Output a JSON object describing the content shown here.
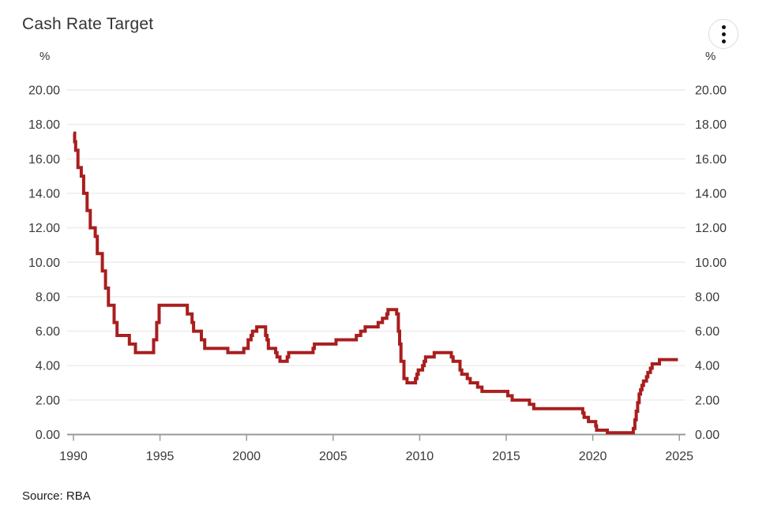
{
  "header": {
    "title": "Cash Rate Target",
    "menu_icon": "kebab-menu-icon"
  },
  "axes": {
    "left_unit": "%",
    "right_unit": "%"
  },
  "footer": {
    "source": "Source: RBA"
  },
  "chart_data": {
    "type": "line",
    "subtype": "step",
    "title": "Cash Rate Target",
    "xlabel": "",
    "ylabel": "%",
    "ylim": [
      0,
      20
    ],
    "ytick_step": 2,
    "ytick_format_decimals": 2,
    "xlim": [
      1990,
      2025
    ],
    "xticks": [
      1990,
      1995,
      2000,
      2005,
      2010,
      2015,
      2020,
      2025
    ],
    "grid": true,
    "legend": "none",
    "line_color": "#a91e1e",
    "grid_color": "#ececec",
    "axis_color": "#999999",
    "label_color": "#3a3a3a",
    "source": "Source: RBA",
    "series": [
      {
        "name": "Cash Rate Target",
        "points": [
          [
            1990.0,
            17.5
          ],
          [
            1990.07,
            17.0
          ],
          [
            1990.13,
            16.5
          ],
          [
            1990.26,
            15.5
          ],
          [
            1990.45,
            15.0
          ],
          [
            1990.59,
            14.0
          ],
          [
            1990.79,
            13.0
          ],
          [
            1990.97,
            12.0
          ],
          [
            1991.26,
            11.5
          ],
          [
            1991.38,
            10.5
          ],
          [
            1991.67,
            9.5
          ],
          [
            1991.85,
            8.5
          ],
          [
            1992.02,
            7.5
          ],
          [
            1992.35,
            6.5
          ],
          [
            1992.52,
            5.75
          ],
          [
            1993.23,
            5.25
          ],
          [
            1993.58,
            4.75
          ],
          [
            1994.63,
            5.5
          ],
          [
            1994.81,
            6.5
          ],
          [
            1994.95,
            7.5
          ],
          [
            1996.58,
            7.0
          ],
          [
            1996.85,
            6.5
          ],
          [
            1996.94,
            6.0
          ],
          [
            1997.39,
            5.5
          ],
          [
            1997.58,
            5.0
          ],
          [
            1998.92,
            4.75
          ],
          [
            1999.84,
            5.0
          ],
          [
            2000.09,
            5.5
          ],
          [
            2000.26,
            5.75
          ],
          [
            2000.34,
            6.0
          ],
          [
            2000.59,
            6.25
          ],
          [
            2001.1,
            5.75
          ],
          [
            2001.18,
            5.5
          ],
          [
            2001.26,
            5.0
          ],
          [
            2001.68,
            4.75
          ],
          [
            2001.76,
            4.5
          ],
          [
            2001.93,
            4.25
          ],
          [
            2002.35,
            4.5
          ],
          [
            2002.43,
            4.75
          ],
          [
            2003.84,
            5.0
          ],
          [
            2003.92,
            5.25
          ],
          [
            2005.17,
            5.5
          ],
          [
            2006.34,
            5.75
          ],
          [
            2006.59,
            6.0
          ],
          [
            2006.85,
            6.25
          ],
          [
            2007.6,
            6.5
          ],
          [
            2007.85,
            6.75
          ],
          [
            2008.1,
            7.0
          ],
          [
            2008.17,
            7.25
          ],
          [
            2008.67,
            7.0
          ],
          [
            2008.77,
            6.0
          ],
          [
            2008.84,
            5.25
          ],
          [
            2008.92,
            4.25
          ],
          [
            2009.09,
            3.25
          ],
          [
            2009.27,
            3.0
          ],
          [
            2009.76,
            3.25
          ],
          [
            2009.84,
            3.5
          ],
          [
            2009.92,
            3.75
          ],
          [
            2010.17,
            4.0
          ],
          [
            2010.26,
            4.25
          ],
          [
            2010.34,
            4.5
          ],
          [
            2010.84,
            4.75
          ],
          [
            2011.83,
            4.5
          ],
          [
            2011.93,
            4.25
          ],
          [
            2012.33,
            3.75
          ],
          [
            2012.43,
            3.5
          ],
          [
            2012.75,
            3.25
          ],
          [
            2012.92,
            3.0
          ],
          [
            2013.35,
            2.75
          ],
          [
            2013.6,
            2.5
          ],
          [
            2015.09,
            2.25
          ],
          [
            2015.34,
            2.0
          ],
          [
            2016.34,
            1.75
          ],
          [
            2016.59,
            1.5
          ],
          [
            2019.42,
            1.25
          ],
          [
            2019.5,
            1.0
          ],
          [
            2019.75,
            0.75
          ],
          [
            2020.17,
            0.5
          ],
          [
            2020.22,
            0.25
          ],
          [
            2020.84,
            0.1
          ],
          [
            2022.34,
            0.35
          ],
          [
            2022.43,
            0.85
          ],
          [
            2022.51,
            1.35
          ],
          [
            2022.59,
            1.85
          ],
          [
            2022.68,
            2.35
          ],
          [
            2022.76,
            2.6
          ],
          [
            2022.84,
            2.85
          ],
          [
            2022.93,
            3.1
          ],
          [
            2023.1,
            3.35
          ],
          [
            2023.18,
            3.6
          ],
          [
            2023.33,
            3.85
          ],
          [
            2023.43,
            4.1
          ],
          [
            2023.85,
            4.35
          ],
          [
            2024.92,
            4.35
          ]
        ]
      }
    ]
  }
}
